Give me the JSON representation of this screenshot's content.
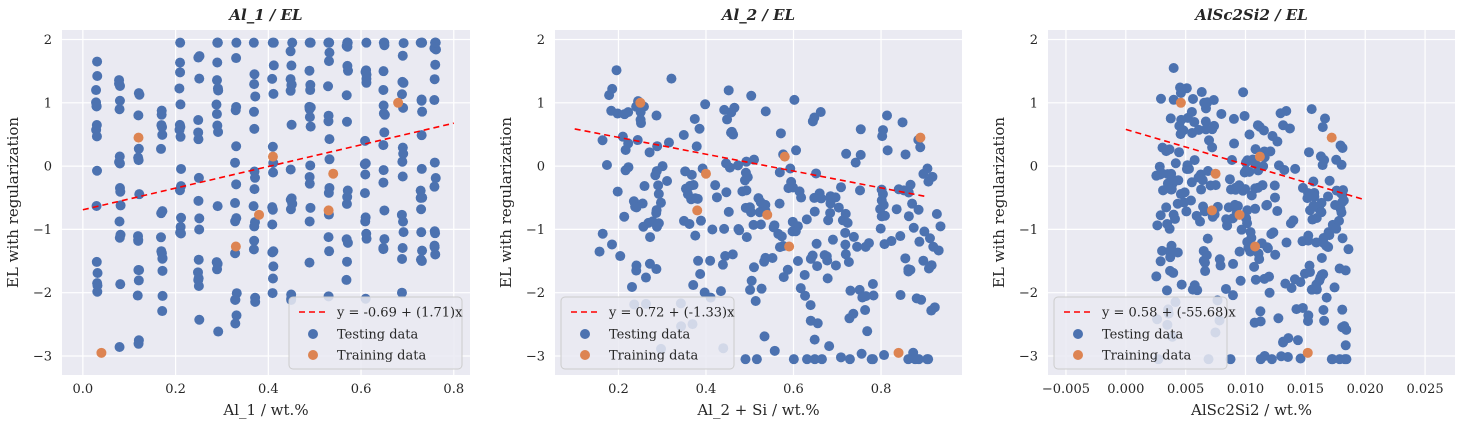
{
  "chart_data": [
    {
      "type": "scatter",
      "title": "Al_1 / EL",
      "xlabel": "Al_1 / wt.%",
      "ylabel": "EL with regularization",
      "xlim": [
        -0.045,
        0.835
      ],
      "ylim": [
        -3.3,
        2.15
      ],
      "xticks": [
        0.0,
        0.2,
        0.4,
        0.6,
        0.8
      ],
      "xtick_labels": [
        "0.0",
        "0.2",
        "0.4",
        "0.6",
        "0.8"
      ],
      "yticks": [
        -3,
        -2,
        -1,
        0,
        1,
        2
      ],
      "ytick_labels": [
        "−3",
        "−2",
        "−1",
        "0",
        "1",
        "2"
      ],
      "grid": true,
      "legend_position": "lower-right",
      "fit": {
        "label": "y = -0.69 + (1.71)x",
        "intercept": -0.69,
        "slope": 1.71,
        "x_range": [
          0.0,
          0.8
        ],
        "color": "#ff0000"
      },
      "series": [
        {
          "name": "Testing data",
          "color": "#4c72b0",
          "x_levels": [
            0.03,
            0.08,
            0.12,
            0.17,
            0.21,
            0.25,
            0.29,
            0.33,
            0.37,
            0.41,
            0.45,
            0.49,
            0.53,
            0.57,
            0.61,
            0.65,
            0.69,
            0.73,
            0.76
          ],
          "points_per_level": 16,
          "slope": 1.71,
          "intercept": -0.69,
          "y_range": [
            -3.05,
            1.95
          ]
        },
        {
          "name": "Training data",
          "color": "#dd8452",
          "points": [
            [
              0.04,
              -2.95
            ],
            [
              0.12,
              0.45
            ],
            [
              0.33,
              -1.27
            ],
            [
              0.38,
              -0.77
            ],
            [
              0.41,
              0.15
            ],
            [
              0.53,
              -0.7
            ],
            [
              0.54,
              -0.12
            ],
            [
              0.68,
              1.0
            ]
          ]
        }
      ]
    },
    {
      "type": "scatter",
      "title": "Al_2 / EL",
      "xlabel": "Al_2 + Si / wt.%",
      "ylabel": "EL with regularization",
      "xlim": [
        0.055,
        0.985
      ],
      "ylim": [
        -3.3,
        2.15
      ],
      "xticks": [
        0.2,
        0.4,
        0.6,
        0.8
      ],
      "xtick_labels": [
        "0.2",
        "0.4",
        "0.6",
        "0.8"
      ],
      "yticks": [
        -3,
        -2,
        -1,
        0,
        1,
        2
      ],
      "ytick_labels": [
        "−3",
        "−2",
        "−1",
        "0",
        "1",
        "2"
      ],
      "grid": true,
      "legend_position": "lower-left",
      "fit": {
        "label": "y = 0.72 + (-1.33)x",
        "intercept": 0.72,
        "slope": -1.33,
        "x_range": [
          0.1,
          0.9
        ],
        "color": "#ff0000"
      },
      "series": [
        {
          "name": "Testing data",
          "color": "#4c72b0",
          "x_range": [
            0.15,
            0.94
          ],
          "count": 300,
          "slope": -1.33,
          "intercept": 0.72,
          "y_range": [
            -3.05,
            1.95
          ]
        },
        {
          "name": "Training data",
          "color": "#dd8452",
          "points": [
            [
              0.25,
              1.0
            ],
            [
              0.38,
              -0.7
            ],
            [
              0.4,
              -0.12
            ],
            [
              0.54,
              -0.77
            ],
            [
              0.58,
              0.15
            ],
            [
              0.59,
              -1.27
            ],
            [
              0.84,
              -2.95
            ],
            [
              0.89,
              0.45
            ]
          ]
        }
      ]
    },
    {
      "type": "scatter",
      "title": "AlSc2Si2 / EL",
      "xlabel": "AlSc2Si2 / wt.%",
      "ylabel": "EL with regularization",
      "xlim": [
        -0.0065,
        0.0275
      ],
      "ylim": [
        -3.3,
        2.15
      ],
      "xticks": [
        -0.005,
        0.0,
        0.005,
        0.01,
        0.015,
        0.02,
        0.025
      ],
      "xtick_labels": [
        "−0.005",
        "0.000",
        "0.005",
        "0.010",
        "0.015",
        "0.020",
        "0.025"
      ],
      "yticks": [
        -3,
        -2,
        -1,
        0,
        1,
        2
      ],
      "ytick_labels": [
        "−3",
        "−2",
        "−1",
        "0",
        "1",
        "2"
      ],
      "grid": true,
      "legend_position": "lower-left",
      "fit": {
        "label": "y = 0.58 + (-55.68)x",
        "intercept": 0.58,
        "slope": -55.68,
        "x_range": [
          0.0,
          0.02
        ],
        "color": "#ff0000"
      },
      "series": [
        {
          "name": "Testing data",
          "color": "#4c72b0",
          "x_range": [
            0.0025,
            0.0188
          ],
          "count": 300,
          "slope": -55.68,
          "intercept": 0.58,
          "y_range": [
            -3.05,
            1.95
          ]
        },
        {
          "name": "Training data",
          "color": "#dd8452",
          "points": [
            [
              0.0046,
              1.0
            ],
            [
              0.0075,
              -0.12
            ],
            [
              0.0072,
              -0.7
            ],
            [
              0.0095,
              -0.77
            ],
            [
              0.0108,
              -1.27
            ],
            [
              0.0112,
              0.15
            ],
            [
              0.0152,
              -2.95
            ],
            [
              0.0172,
              0.45
            ]
          ]
        }
      ]
    }
  ]
}
